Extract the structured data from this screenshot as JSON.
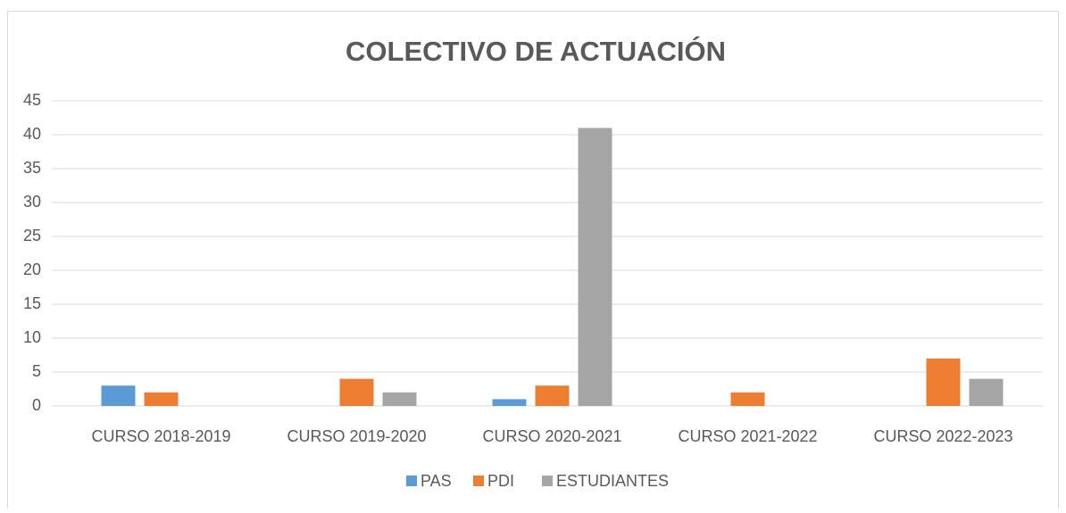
{
  "chart_data": {
    "type": "bar",
    "title": "COLECTIVO DE ACTUACIÓN",
    "categories": [
      "CURSO 2018-2019",
      "CURSO 2019-2020",
      "CURSO 2020-2021",
      "CURSO 2021-2022",
      "CURSO 2022-2023"
    ],
    "series": [
      {
        "name": "PAS",
        "color": "#5b9bd5",
        "values": [
          3,
          0,
          1,
          0,
          0
        ]
      },
      {
        "name": "PDI",
        "color": "#ed7d31",
        "values": [
          2,
          4,
          3,
          2,
          7
        ]
      },
      {
        "name": "ESTUDIANTES",
        "color": "#a5a5a5",
        "values": [
          0,
          2,
          41,
          0,
          4
        ]
      }
    ],
    "ylim": [
      0,
      45
    ],
    "yticks": [
      0,
      5,
      10,
      15,
      20,
      25,
      30,
      35,
      40,
      45
    ],
    "grid": true,
    "legend": "bottom"
  }
}
